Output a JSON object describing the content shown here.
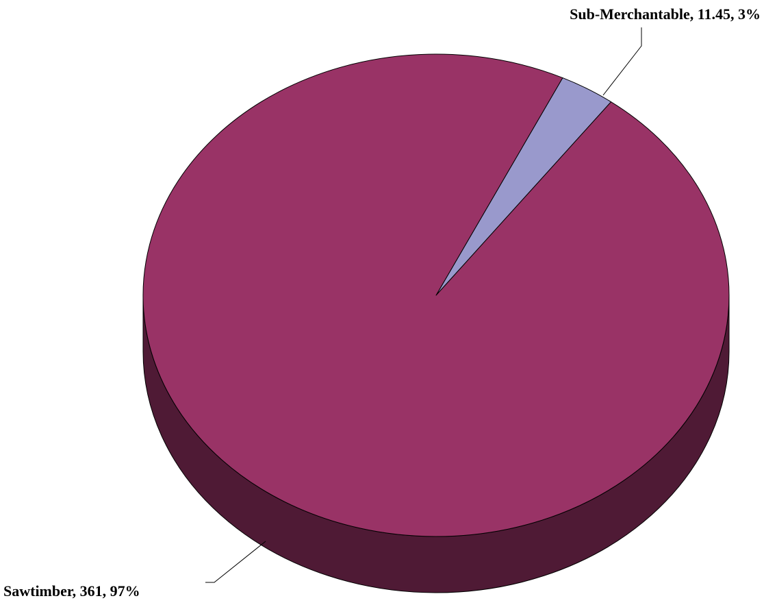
{
  "chart_data": {
    "type": "pie",
    "style": "3d",
    "title": "",
    "categories": [
      "Sub-Merchantable",
      "Sawtimber"
    ],
    "values": [
      11.45,
      361
    ],
    "percents": [
      "3%",
      "97%"
    ],
    "labels": [
      "Sub-Merchantable, 11.45, 3%",
      "Sawtimber, 361, 97%"
    ],
    "colors": [
      "#9999CC",
      "#993366"
    ],
    "side_colors": [
      "#5E5E8A",
      "#4F1A35"
    ],
    "outline_color": "#000000",
    "legend": "none"
  }
}
